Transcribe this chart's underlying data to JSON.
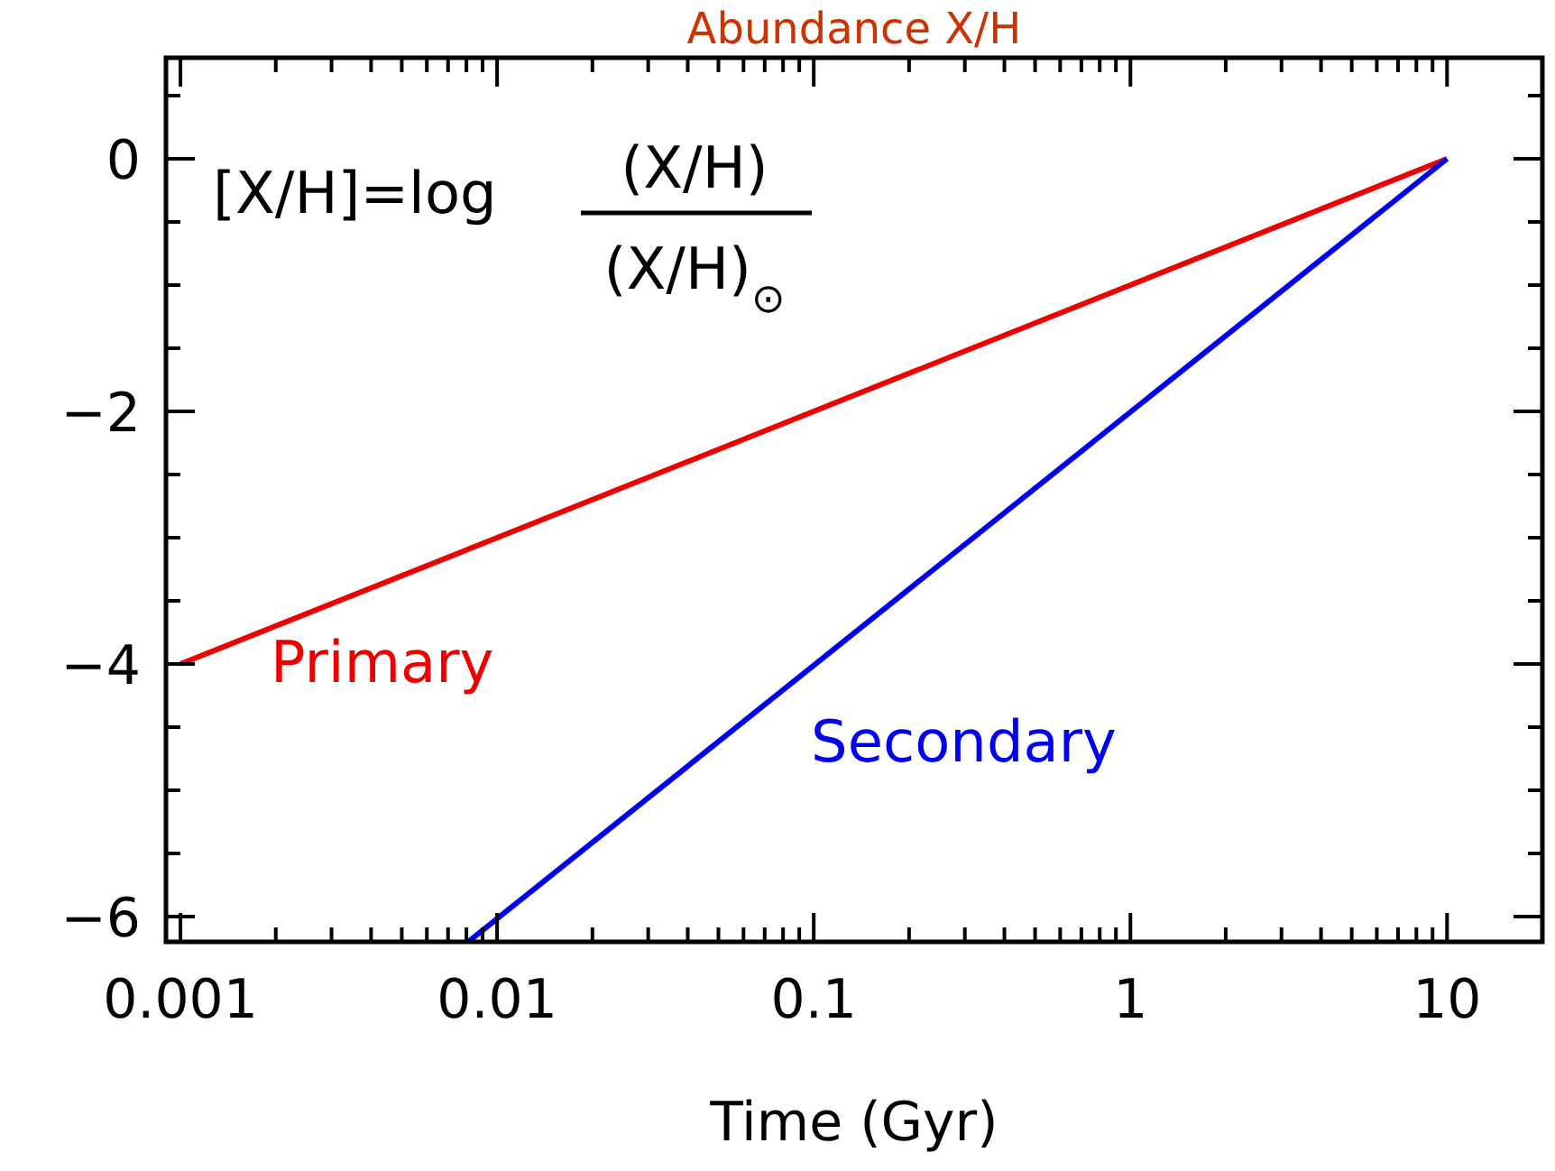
{
  "chart_data": {
    "type": "line",
    "title": "Abundance X/H",
    "xlabel": "Time (Gyr)",
    "log": "x",
    "xlim": [
      0.0009,
      20
    ],
    "ylim": [
      -6.2,
      0.8
    ],
    "xticks": [
      {
        "value": 0.001,
        "label": "0.001"
      },
      {
        "value": 0.002,
        "label": null
      },
      {
        "value": 0.003,
        "label": null
      },
      {
        "value": 0.004,
        "label": null
      },
      {
        "value": 0.005,
        "label": null
      },
      {
        "value": 0.006,
        "label": null
      },
      {
        "value": 0.007,
        "label": null
      },
      {
        "value": 0.008,
        "label": null
      },
      {
        "value": 0.009,
        "label": null
      },
      {
        "value": 0.01,
        "label": "0.01"
      },
      {
        "value": 0.02,
        "label": null
      },
      {
        "value": 0.03,
        "label": null
      },
      {
        "value": 0.04,
        "label": null
      },
      {
        "value": 0.05,
        "label": null
      },
      {
        "value": 0.06,
        "label": null
      },
      {
        "value": 0.07,
        "label": null
      },
      {
        "value": 0.08,
        "label": null
      },
      {
        "value": 0.09,
        "label": null
      },
      {
        "value": 0.1,
        "label": "0.1"
      },
      {
        "value": 0.2,
        "label": null
      },
      {
        "value": 0.3,
        "label": null
      },
      {
        "value": 0.4,
        "label": null
      },
      {
        "value": 0.5,
        "label": null
      },
      {
        "value": 0.6,
        "label": null
      },
      {
        "value": 0.7,
        "label": null
      },
      {
        "value": 0.8,
        "label": null
      },
      {
        "value": 0.9,
        "label": null
      },
      1,
      {
        "value": 2,
        "label": null
      },
      {
        "value": 3,
        "label": null
      },
      {
        "value": 4,
        "label": null
      },
      {
        "value": 5,
        "label": null
      },
      {
        "value": 6,
        "label": null
      },
      {
        "value": 7,
        "label": null
      },
      {
        "value": 8,
        "label": null
      },
      {
        "value": 9,
        "label": null
      },
      10,
      {
        "value": 20,
        "label": null
      }
    ],
    "yticks": [
      {
        "value": -6,
        "label": "−6"
      },
      {
        "value": -5.5,
        "label": null
      },
      {
        "value": -5,
        "label": null
      },
      {
        "value": -4.5,
        "label": null
      },
      {
        "value": -4,
        "label": "−4"
      },
      {
        "value": -3.5,
        "label": null
      },
      {
        "value": -3,
        "label": null
      },
      {
        "value": -2.5,
        "label": null
      },
      {
        "value": -2,
        "label": "−2"
      },
      {
        "value": -1.5,
        "label": null
      },
      {
        "value": -1,
        "label": null
      },
      {
        "value": -0.5,
        "label": null
      },
      0,
      {
        "value": 0.5,
        "label": null
      }
    ],
    "series": [
      {
        "name": "Primary",
        "color": "#ee0000",
        "x": [
          0.001,
          10
        ],
        "values": [
          -4,
          0
        ]
      },
      {
        "name": "Secondary",
        "color": "#0000ee",
        "x": [
          0.0081,
          10
        ],
        "values": [
          -6.2,
          0
        ]
      }
    ],
    "annotations": [
      "[X/H]=log",
      "(X/H)",
      "(X/H)$_{⊙}$"
    ]
  }
}
